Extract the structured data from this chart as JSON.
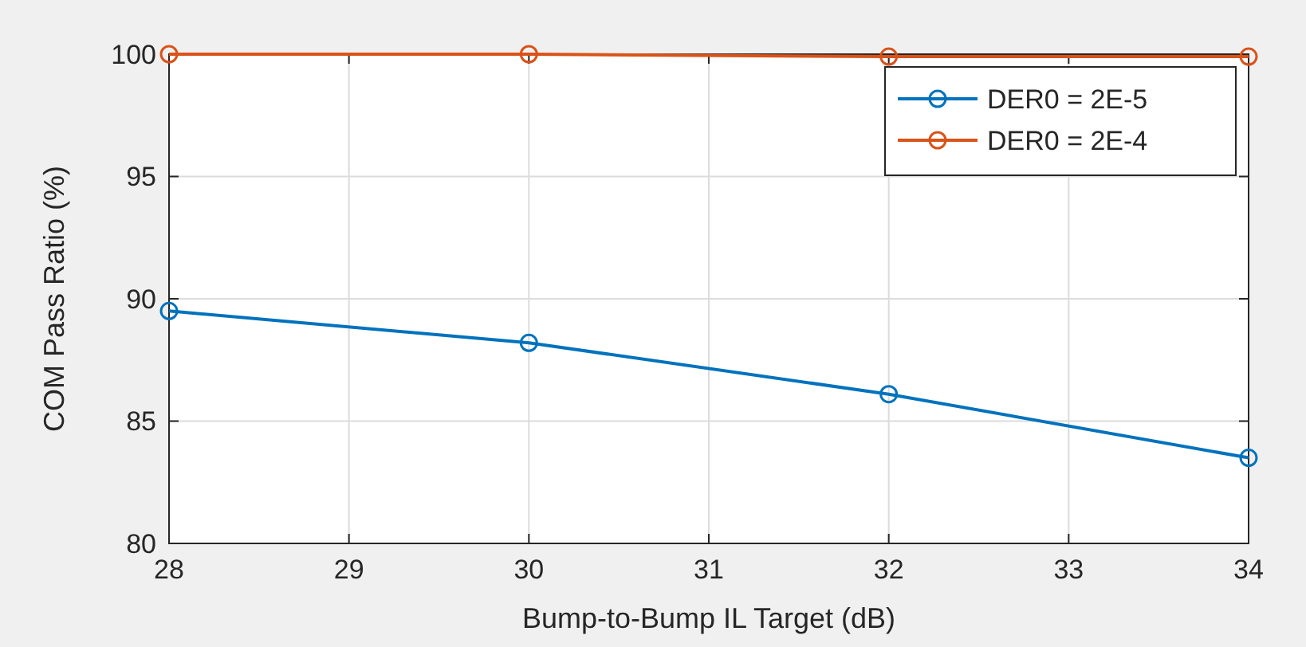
{
  "chart_data": {
    "type": "line",
    "xlabel": "Bump-to-Bump IL Target (dB)",
    "ylabel": "COM Pass Ratio (%)",
    "x": [
      28,
      30,
      32,
      34
    ],
    "series": [
      {
        "name": "DER0 = 2E-5",
        "color": "#0072bd",
        "values": [
          89.5,
          88.2,
          86.1,
          83.5
        ]
      },
      {
        "name": "DER0 = 2E-4",
        "color": "#d95319",
        "values": [
          100,
          100,
          99.9,
          99.9
        ]
      }
    ],
    "xlim": [
      28,
      34
    ],
    "xticks": [
      28,
      29,
      30,
      31,
      32,
      33,
      34
    ],
    "ylim": [
      80,
      100
    ],
    "yticks": [
      80,
      85,
      90,
      95,
      100
    ],
    "grid": true,
    "legend": "top right",
    "marker": "circle",
    "line_style": "solid"
  }
}
